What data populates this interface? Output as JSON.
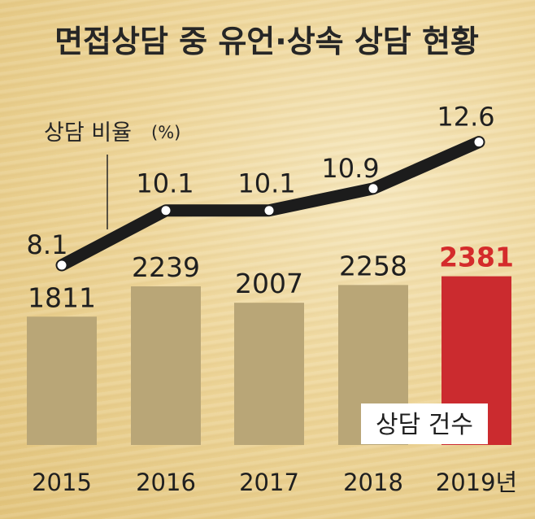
{
  "chart_data": {
    "type": "bar",
    "title": "면접상담 중 유언·상속 상담 현황",
    "categories": [
      "2015",
      "2016",
      "2017",
      "2018",
      "2019년"
    ],
    "series": [
      {
        "name": "상담 건수",
        "type": "bar",
        "values": [
          1811,
          2239,
          2007,
          2258,
          2381
        ]
      },
      {
        "name": "상담 비율",
        "unit": "(%)",
        "type": "line",
        "values": [
          8.1,
          10.1,
          10.1,
          10.9,
          12.6
        ]
      }
    ],
    "highlight_index": 4,
    "colors": {
      "bar": "#b9a677",
      "bar_highlight": "#cb2b2f",
      "highlight_text": "#d42b2b",
      "line": "#1c1c1c",
      "marker_fill": "#ffffff"
    },
    "grid": false
  }
}
